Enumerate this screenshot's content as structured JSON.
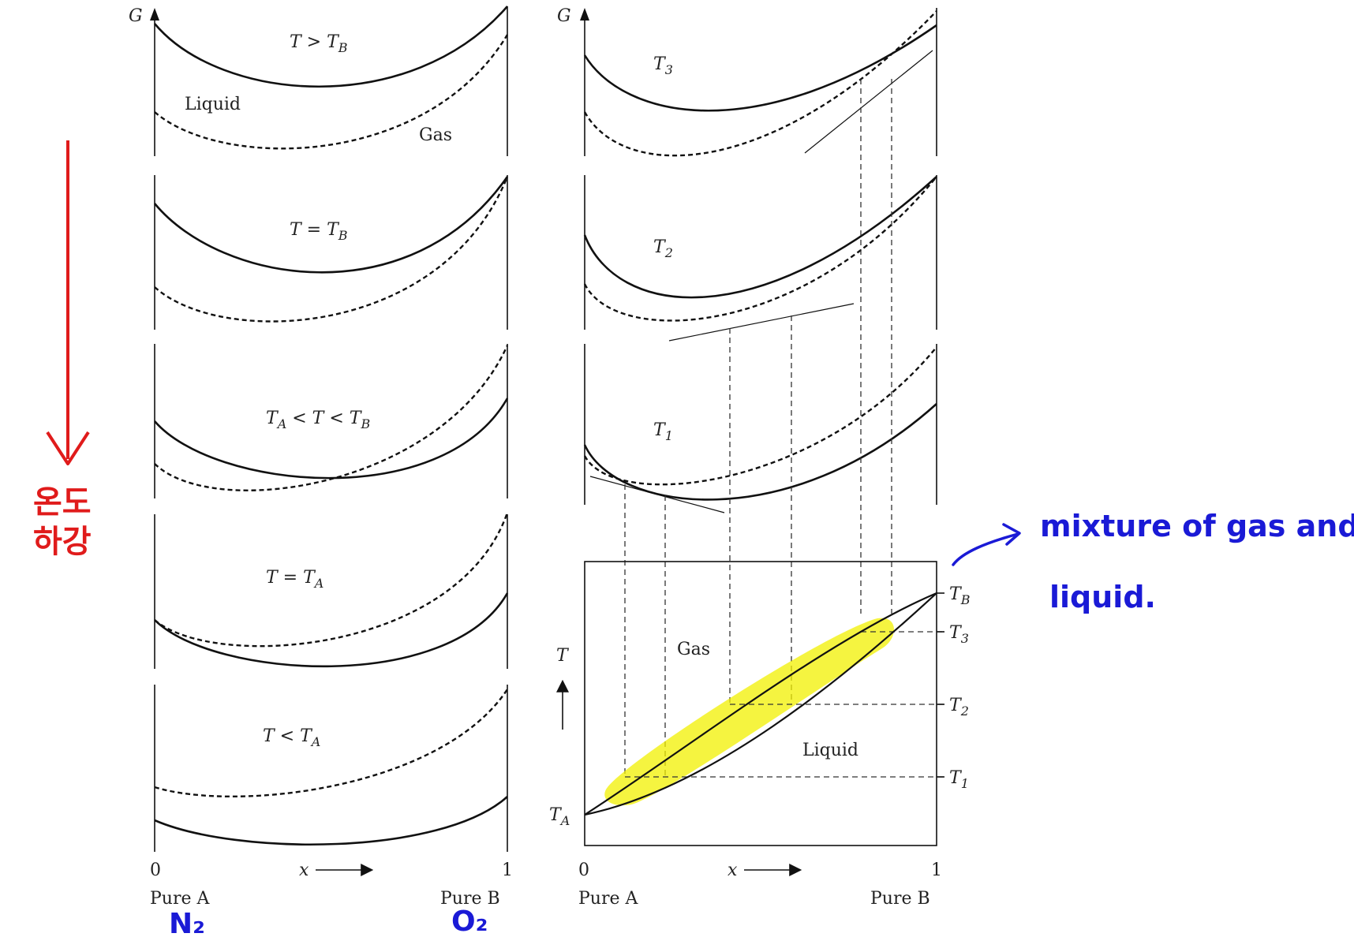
{
  "g_axis_label": "G",
  "left": {
    "panels": [
      {
        "label": "T > T",
        "sub": "B"
      },
      {
        "label": "T = T",
        "sub": "B"
      },
      {
        "label": "T",
        "sub": "A",
        "label2": " < T < T",
        "sub2": "B"
      },
      {
        "label": "T = T",
        "sub": "A"
      },
      {
        "label": "T < T",
        "sub": "A"
      }
    ],
    "liquid_label": "Liquid",
    "gas_label": "Gas",
    "x_zero": "0",
    "x_one": "1",
    "x_label": "x",
    "pure_a": "Pure A",
    "pure_b": "Pure B"
  },
  "right": {
    "panels": [
      {
        "label": "T",
        "sub": "3"
      },
      {
        "label": "T",
        "sub": "2"
      },
      {
        "label": "T",
        "sub": "1"
      }
    ],
    "phase_diagram": {
      "t_axis": "T",
      "gas_label": "Gas",
      "liquid_label": "Liquid",
      "tb": {
        "label": "T",
        "sub": "B"
      },
      "t3": {
        "label": "T",
        "sub": "3"
      },
      "t2": {
        "label": "T",
        "sub": "2"
      },
      "t1": {
        "label": "T",
        "sub": "1"
      },
      "ta": {
        "label": "T",
        "sub": "A"
      }
    },
    "x_zero": "0",
    "x_one": "1",
    "x_label": "x",
    "pure_a": "Pure A",
    "pure_b": "Pure B"
  },
  "annotations": {
    "temp_drop_line1": "온도",
    "temp_drop_line2": "하강",
    "n2": "N₂",
    "o2": "O₂",
    "mixture_line1": "mixture of gas and",
    "mixture_line2": "liquid.",
    "highlight_color": "#f2f000",
    "red_color": "#e01b1b",
    "blue_color": "#1a1ad6"
  }
}
